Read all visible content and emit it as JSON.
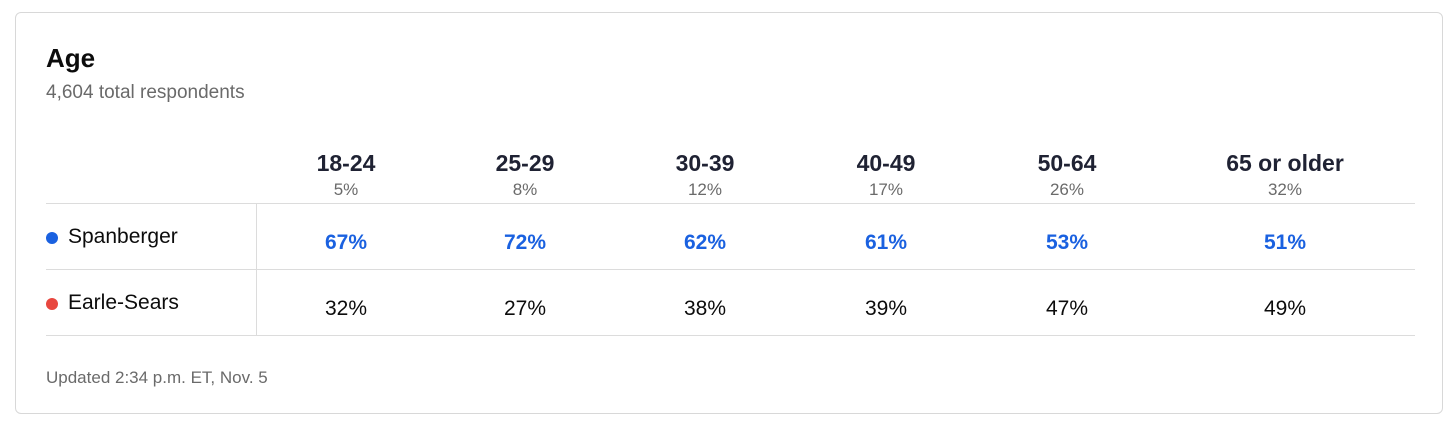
{
  "title": "Age",
  "subtitle": "4,604 total respondents",
  "footer": "Updated 2:34 p.m. ET, Nov. 5",
  "colors": {
    "spanberger": "#1a61e0",
    "earle_sears": "#e8473f",
    "text": "#0c0c0c",
    "muted": "#6a6a6a"
  },
  "chart_data": {
    "type": "table",
    "title": "Age",
    "subtitle": "4,604 total respondents",
    "categories": [
      "18-24",
      "25-29",
      "30-39",
      "40-49",
      "50-64",
      "65 or older"
    ],
    "category_shares": [
      "5%",
      "8%",
      "12%",
      "17%",
      "26%",
      "32%"
    ],
    "series": [
      {
        "name": "Spanberger",
        "color": "#1a61e0",
        "values": [
          67,
          72,
          62,
          61,
          53,
          51
        ],
        "labels": [
          "67%",
          "72%",
          "62%",
          "61%",
          "53%",
          "51%"
        ]
      },
      {
        "name": "Earle-Sears",
        "color": "#e8473f",
        "values": [
          32,
          27,
          38,
          39,
          47,
          49
        ],
        "labels": [
          "32%",
          "27%",
          "38%",
          "39%",
          "47%",
          "49%"
        ]
      }
    ]
  }
}
